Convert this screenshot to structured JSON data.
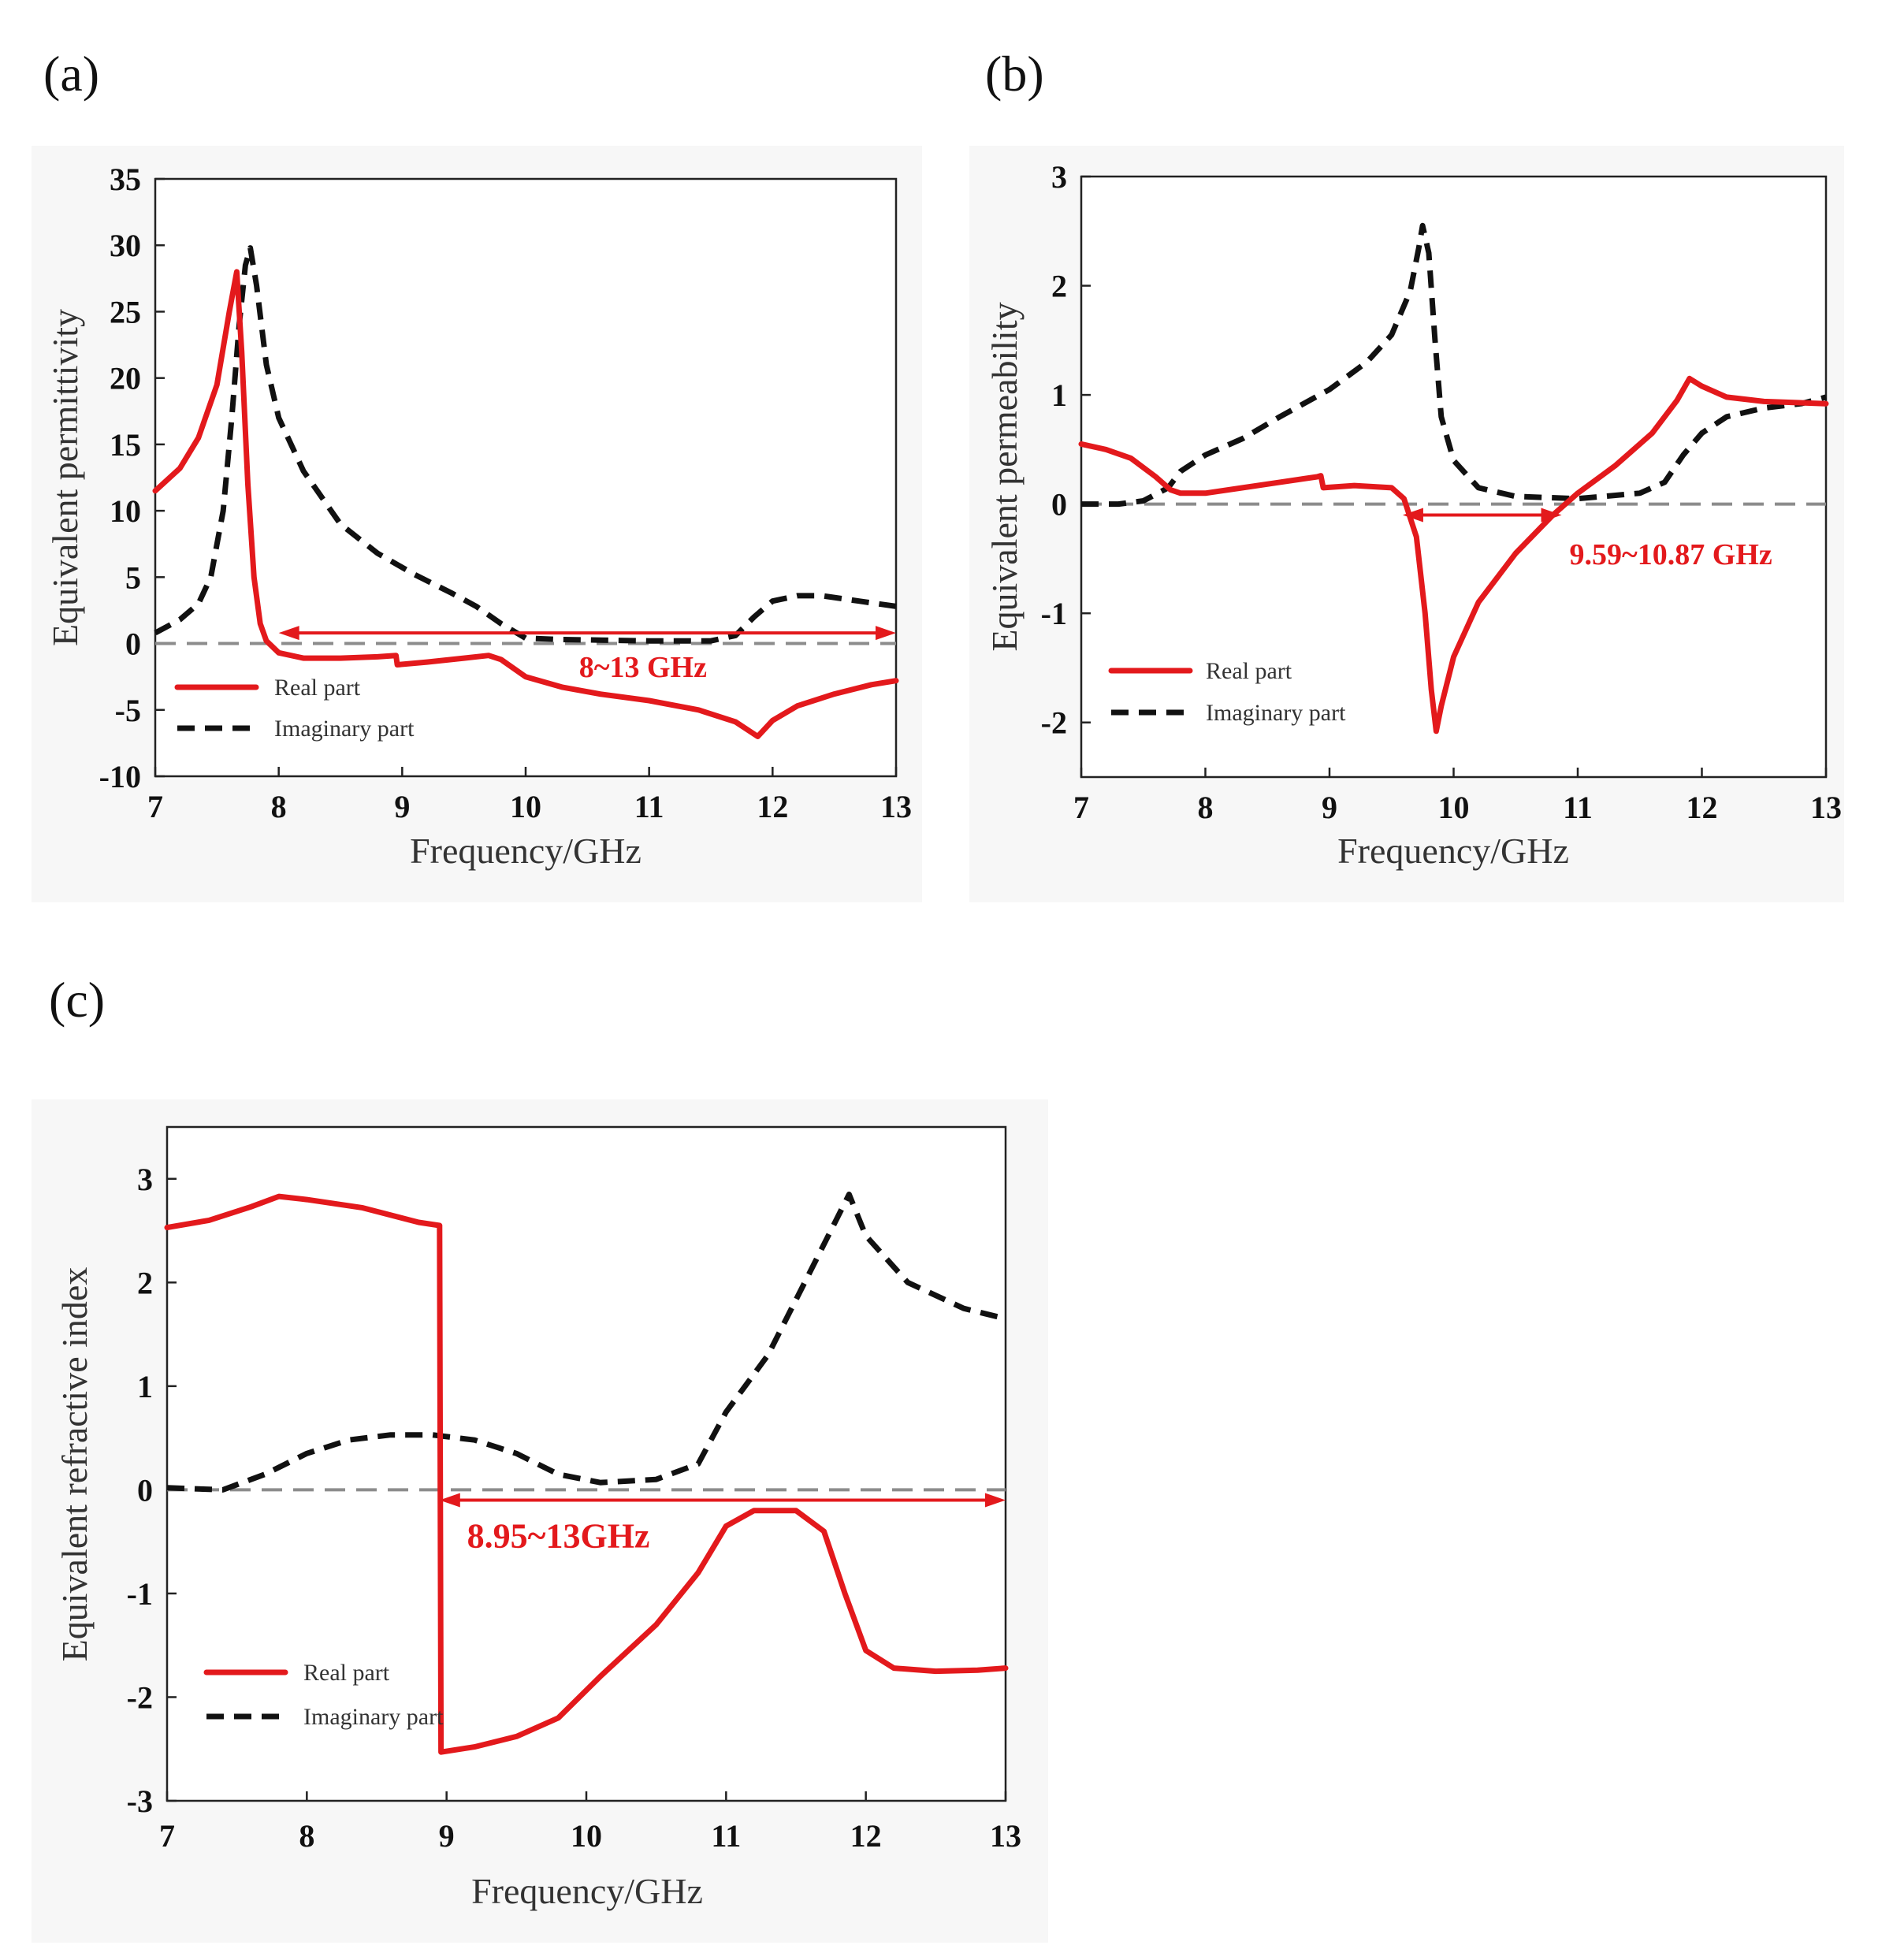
{
  "chart_data": [
    {
      "id": "a",
      "type": "line",
      "panel_label": "(a)",
      "xlabel": "Frequency/GHz",
      "ylabel": "Equivalent permittivity",
      "xlim": [
        7,
        13
      ],
      "ylim": [
        -10,
        35
      ],
      "xticks": [
        7,
        8,
        9,
        10,
        11,
        12,
        13
      ],
      "yticks": [
        -10,
        -5,
        0,
        5,
        10,
        15,
        20,
        25,
        30,
        35
      ],
      "grid": false,
      "legend_position": "bottom-left",
      "zero_line": true,
      "series": [
        {
          "name": "Real part",
          "style": "solid",
          "color": "#e3191c",
          "points": [
            [
              7.0,
              11.5
            ],
            [
              7.2,
              13.2
            ],
            [
              7.35,
              15.5
            ],
            [
              7.5,
              19.5
            ],
            [
              7.6,
              25.0
            ],
            [
              7.66,
              28.0
            ],
            [
              7.7,
              22.0
            ],
            [
              7.75,
              12.0
            ],
            [
              7.8,
              5.0
            ],
            [
              7.85,
              1.5
            ],
            [
              7.9,
              0.2
            ],
            [
              8.0,
              -0.7
            ],
            [
              8.2,
              -1.1
            ],
            [
              8.5,
              -1.1
            ],
            [
              8.8,
              -1.0
            ],
            [
              8.95,
              -0.9
            ],
            [
              8.96,
              -1.6
            ],
            [
              9.2,
              -1.4
            ],
            [
              9.5,
              -1.1
            ],
            [
              9.7,
              -0.9
            ],
            [
              9.8,
              -1.2
            ],
            [
              10.0,
              -2.5
            ],
            [
              10.3,
              -3.3
            ],
            [
              10.6,
              -3.8
            ],
            [
              11.0,
              -4.3
            ],
            [
              11.4,
              -5.0
            ],
            [
              11.7,
              -5.9
            ],
            [
              11.88,
              -7.0
            ],
            [
              12.0,
              -5.8
            ],
            [
              12.2,
              -4.7
            ],
            [
              12.5,
              -3.8
            ],
            [
              12.8,
              -3.1
            ],
            [
              13.0,
              -2.8
            ]
          ]
        },
        {
          "name": "Imaginary part",
          "style": "dashed",
          "color": "#111111",
          "points": [
            [
              7.0,
              0.8
            ],
            [
              7.2,
              1.8
            ],
            [
              7.35,
              3.0
            ],
            [
              7.45,
              5.0
            ],
            [
              7.55,
              10.0
            ],
            [
              7.62,
              17.0
            ],
            [
              7.68,
              24.0
            ],
            [
              7.73,
              28.5
            ],
            [
              7.77,
              29.8
            ],
            [
              7.82,
              27.0
            ],
            [
              7.9,
              21.0
            ],
            [
              8.0,
              17.0
            ],
            [
              8.2,
              13.0
            ],
            [
              8.5,
              9.0
            ],
            [
              8.8,
              6.8
            ],
            [
              9.1,
              5.2
            ],
            [
              9.4,
              3.8
            ],
            [
              9.6,
              2.8
            ],
            [
              9.8,
              1.5
            ],
            [
              10.0,
              0.4
            ],
            [
              10.3,
              0.3
            ],
            [
              11.0,
              0.2
            ],
            [
              11.5,
              0.2
            ],
            [
              11.7,
              0.6
            ],
            [
              11.85,
              2.0
            ],
            [
              12.0,
              3.2
            ],
            [
              12.2,
              3.6
            ],
            [
              12.4,
              3.6
            ],
            [
              12.7,
              3.2
            ],
            [
              13.0,
              2.8
            ]
          ]
        }
      ],
      "annotation": {
        "text": "8~13 GHz",
        "from_x": 8.0,
        "to_x": 13.0,
        "y": 0.8,
        "label_x": 10.95,
        "label_y": -1.7
      }
    },
    {
      "id": "b",
      "type": "line",
      "panel_label": "(b)",
      "xlabel": "Frequency/GHz",
      "ylabel": "Equivalent permeability",
      "xlim": [
        7,
        13
      ],
      "ylim": [
        -2.5,
        3
      ],
      "xticks": [
        7,
        8,
        9,
        10,
        11,
        12,
        13
      ],
      "yticks": [
        -2,
        -1,
        0,
        1,
        2,
        3
      ],
      "grid": false,
      "legend_position": "bottom-left",
      "zero_line": true,
      "series": [
        {
          "name": "Real part",
          "style": "solid",
          "color": "#e3191c",
          "points": [
            [
              7.0,
              0.55
            ],
            [
              7.2,
              0.5
            ],
            [
              7.4,
              0.42
            ],
            [
              7.6,
              0.25
            ],
            [
              7.72,
              0.13
            ],
            [
              7.8,
              0.1
            ],
            [
              8.0,
              0.1
            ],
            [
              8.3,
              0.15
            ],
            [
              8.6,
              0.2
            ],
            [
              8.9,
              0.25
            ],
            [
              8.93,
              0.26
            ],
            [
              8.95,
              0.15
            ],
            [
              9.2,
              0.17
            ],
            [
              9.5,
              0.15
            ],
            [
              9.6,
              0.05
            ],
            [
              9.7,
              -0.3
            ],
            [
              9.77,
              -1.0
            ],
            [
              9.82,
              -1.7
            ],
            [
              9.86,
              -2.08
            ],
            [
              9.9,
              -1.85
            ],
            [
              10.0,
              -1.4
            ],
            [
              10.2,
              -0.9
            ],
            [
              10.5,
              -0.45
            ],
            [
              10.8,
              -0.1
            ],
            [
              11.0,
              0.1
            ],
            [
              11.3,
              0.35
            ],
            [
              11.6,
              0.65
            ],
            [
              11.8,
              0.95
            ],
            [
              11.9,
              1.15
            ],
            [
              12.0,
              1.08
            ],
            [
              12.2,
              0.98
            ],
            [
              12.5,
              0.94
            ],
            [
              13.0,
              0.92
            ]
          ]
        },
        {
          "name": "Imaginary part",
          "style": "dashed",
          "color": "#111111",
          "points": [
            [
              7.0,
              0.0
            ],
            [
              7.3,
              0.0
            ],
            [
              7.5,
              0.03
            ],
            [
              7.7,
              0.15
            ],
            [
              7.8,
              0.3
            ],
            [
              8.0,
              0.45
            ],
            [
              8.3,
              0.6
            ],
            [
              8.6,
              0.8
            ],
            [
              9.0,
              1.05
            ],
            [
              9.3,
              1.3
            ],
            [
              9.5,
              1.55
            ],
            [
              9.65,
              1.95
            ],
            [
              9.72,
              2.35
            ],
            [
              9.75,
              2.55
            ],
            [
              9.8,
              2.3
            ],
            [
              9.85,
              1.5
            ],
            [
              9.9,
              0.8
            ],
            [
              10.0,
              0.4
            ],
            [
              10.2,
              0.15
            ],
            [
              10.5,
              0.07
            ],
            [
              11.0,
              0.05
            ],
            [
              11.5,
              0.1
            ],
            [
              11.7,
              0.2
            ],
            [
              11.85,
              0.45
            ],
            [
              12.0,
              0.65
            ],
            [
              12.2,
              0.8
            ],
            [
              12.5,
              0.88
            ],
            [
              12.8,
              0.92
            ],
            [
              13.0,
              0.98
            ]
          ]
        }
      ],
      "annotation": {
        "text": "9.59~10.87 GHz",
        "from_x": 9.59,
        "to_x": 10.87,
        "y": -0.1,
        "label_x": 11.75,
        "label_y": -0.45
      }
    },
    {
      "id": "c",
      "type": "line",
      "panel_label": "(c)",
      "xlabel": "Frequency/GHz",
      "ylabel": "Equivalent refractive index",
      "xlim": [
        7,
        13
      ],
      "ylim": [
        -3,
        3.5
      ],
      "xticks": [
        7,
        8,
        9,
        10,
        11,
        12,
        13
      ],
      "yticks": [
        -3,
        -2,
        -1,
        0,
        1,
        2,
        3
      ],
      "grid": false,
      "legend_position": "bottom-left",
      "zero_line": true,
      "series": [
        {
          "name": "Real part",
          "style": "solid",
          "color": "#e3191c",
          "points": [
            [
              7.0,
              2.53
            ],
            [
              7.3,
              2.6
            ],
            [
              7.6,
              2.73
            ],
            [
              7.8,
              2.83
            ],
            [
              8.0,
              2.8
            ],
            [
              8.4,
              2.72
            ],
            [
              8.8,
              2.58
            ],
            [
              8.95,
              2.55
            ],
            [
              8.96,
              -2.53
            ],
            [
              9.2,
              -2.48
            ],
            [
              9.5,
              -2.38
            ],
            [
              9.8,
              -2.2
            ],
            [
              10.1,
              -1.8
            ],
            [
              10.5,
              -1.3
            ],
            [
              10.8,
              -0.8
            ],
            [
              11.0,
              -0.35
            ],
            [
              11.2,
              -0.2
            ],
            [
              11.5,
              -0.2
            ],
            [
              11.7,
              -0.4
            ],
            [
              11.85,
              -1.0
            ],
            [
              12.0,
              -1.55
            ],
            [
              12.2,
              -1.72
            ],
            [
              12.5,
              -1.75
            ],
            [
              12.8,
              -1.74
            ],
            [
              13.0,
              -1.72
            ]
          ]
        },
        {
          "name": "Imaginary part",
          "style": "dashed",
          "color": "#111111",
          "points": [
            [
              7.0,
              0.02
            ],
            [
              7.4,
              0.0
            ],
            [
              7.7,
              0.15
            ],
            [
              8.0,
              0.35
            ],
            [
              8.3,
              0.48
            ],
            [
              8.6,
              0.53
            ],
            [
              8.9,
              0.53
            ],
            [
              9.2,
              0.48
            ],
            [
              9.5,
              0.35
            ],
            [
              9.8,
              0.15
            ],
            [
              10.1,
              0.07
            ],
            [
              10.5,
              0.1
            ],
            [
              10.8,
              0.25
            ],
            [
              11.0,
              0.75
            ],
            [
              11.3,
              1.3
            ],
            [
              11.6,
              2.1
            ],
            [
              11.88,
              2.85
            ],
            [
              12.0,
              2.45
            ],
            [
              12.3,
              2.0
            ],
            [
              12.7,
              1.75
            ],
            [
              13.0,
              1.65
            ]
          ]
        }
      ],
      "annotation": {
        "text": "8.95~13GHz",
        "from_x": 8.95,
        "to_x": 13.0,
        "y": -0.1,
        "label_x": 9.8,
        "label_y": -0.45
      }
    }
  ]
}
